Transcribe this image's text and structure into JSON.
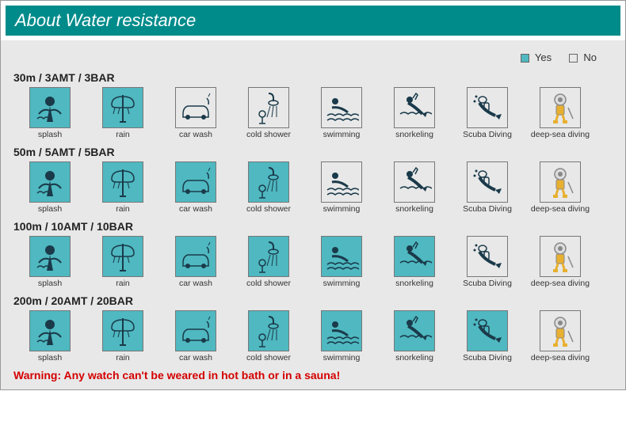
{
  "header": {
    "title": "About Water resistance"
  },
  "legend": {
    "yes_label": "Yes",
    "no_label": "No"
  },
  "colors": {
    "header_bg": "#008b8b",
    "header_text": "#ffffff",
    "content_bg": "#e8e8e8",
    "yes_tile": "#4fb8c0",
    "no_tile": "#e8e8e8",
    "tile_border": "#777777",
    "warning": "#d40000",
    "text": "#222222",
    "caption": "#333333"
  },
  "activities": [
    {
      "key": "splash",
      "label": "splash",
      "icon": "splash-icon"
    },
    {
      "key": "rain",
      "label": "rain",
      "icon": "rain-icon"
    },
    {
      "key": "carwash",
      "label": "car wash",
      "icon": "car-wash-icon"
    },
    {
      "key": "coldshower",
      "label": "cold shower",
      "icon": "cold-shower-icon"
    },
    {
      "key": "swimming",
      "label": "swimming",
      "icon": "swimming-icon"
    },
    {
      "key": "snorkeling",
      "label": "snorkeling",
      "icon": "snorkeling-icon"
    },
    {
      "key": "scuba",
      "label": "Scuba Diving",
      "icon": "scuba-diving-icon"
    },
    {
      "key": "deepsea",
      "label": "deep-sea diving",
      "icon": "deep-sea-diving-icon"
    }
  ],
  "ratings": [
    {
      "title": "30m / 3AMT / 3BAR",
      "values": {
        "splash": true,
        "rain": true,
        "carwash": false,
        "coldshower": false,
        "swimming": false,
        "snorkeling": false,
        "scuba": false,
        "deepsea": false
      }
    },
    {
      "title": "50m / 5AMT / 5BAR",
      "values": {
        "splash": true,
        "rain": true,
        "carwash": true,
        "coldshower": true,
        "swimming": false,
        "snorkeling": false,
        "scuba": false,
        "deepsea": false
      }
    },
    {
      "title": "100m / 10AMT / 10BAR",
      "values": {
        "splash": true,
        "rain": true,
        "carwash": true,
        "coldshower": true,
        "swimming": true,
        "snorkeling": true,
        "scuba": false,
        "deepsea": false
      }
    },
    {
      "title": "200m / 20AMT / 20BAR",
      "values": {
        "splash": true,
        "rain": true,
        "carwash": true,
        "coldshower": true,
        "swimming": true,
        "snorkeling": true,
        "scuba": true,
        "deepsea": false
      }
    }
  ],
  "warning": "Warning: Any watch can't be weared in hot bath or in a sauna!"
}
